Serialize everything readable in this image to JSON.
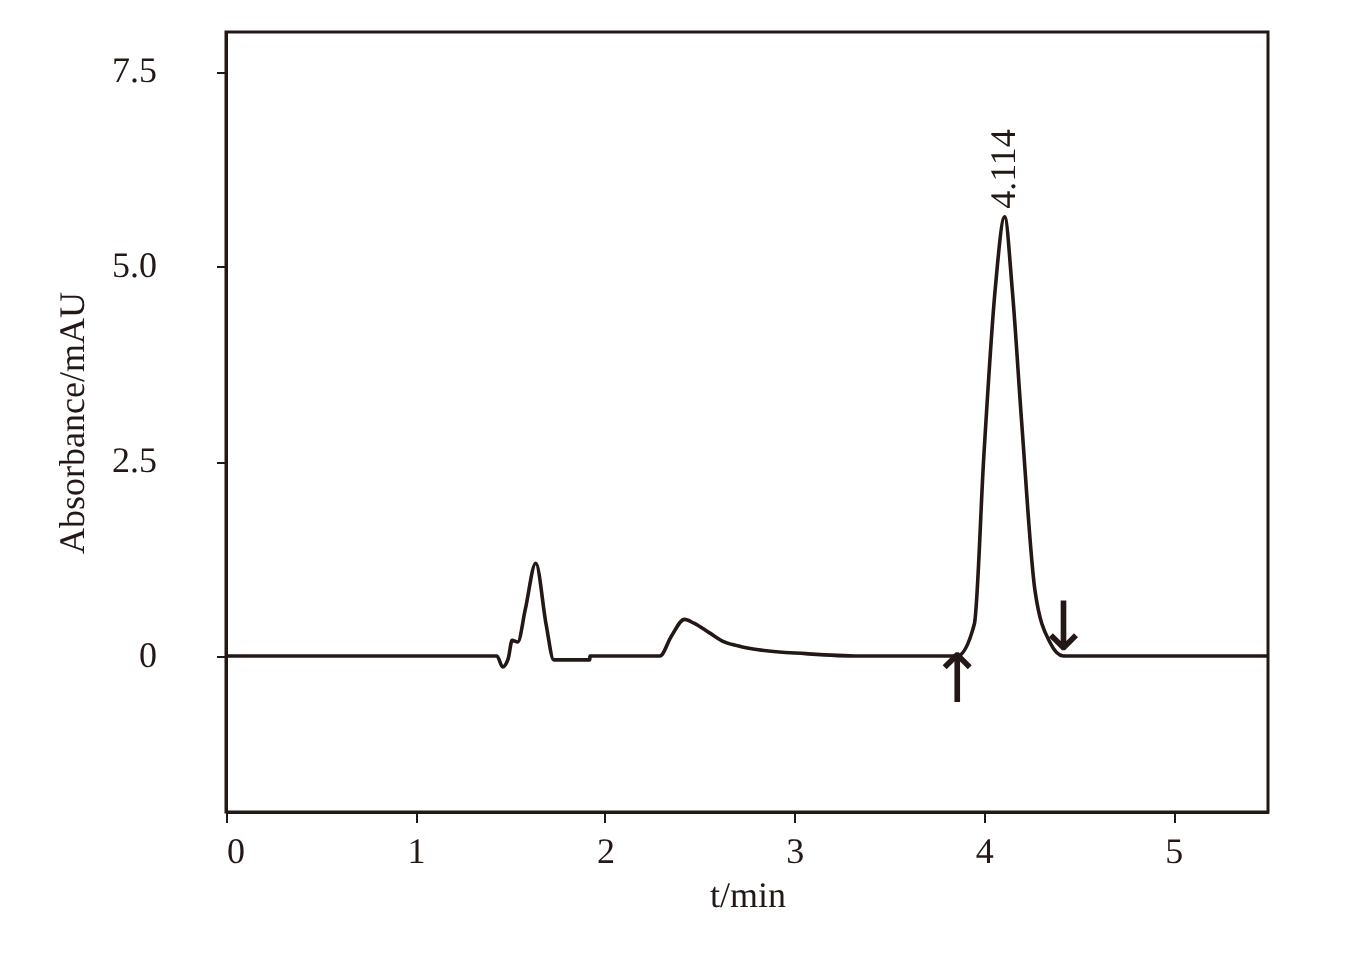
{
  "chart_data": {
    "type": "line",
    "xlabel": "t/min",
    "ylabel": "Absorbance/mAU",
    "xlim": [
      0,
      5.5
    ],
    "ylim": [
      -2,
      8
    ],
    "xticks": [
      0,
      1,
      2,
      3,
      4,
      5
    ],
    "yticks": [
      0,
      2.5,
      {
        "value": 5,
        "label": "5.0"
      },
      7.5
    ],
    "grid": false,
    "marker": "none",
    "line_style": "solid",
    "series": [
      {
        "color": "#231815",
        "x": [
          0,
          1.43,
          1.46,
          1.49,
          1.51,
          1.54,
          1.58,
          1.635,
          1.69,
          1.73,
          1.92,
          1.921,
          2.29,
          2.35,
          2.42,
          2.47,
          2.55,
          2.63,
          2.72,
          2.81,
          3.06,
          3.34,
          3.86,
          3.95,
          4.0,
          4.06,
          4.11,
          4.15,
          4.2,
          4.27,
          4.35,
          4.42,
          5.5
        ],
        "values": [
          0,
          0,
          -0.14,
          -0.03,
          0.2,
          0.18,
          0.6,
          1.19,
          0.4,
          -0.05,
          -0.05,
          0,
          0,
          0.25,
          0.47,
          0.42,
          0.3,
          0.18,
          0.12,
          0.08,
          0.03,
          0,
          0,
          0.41,
          2.56,
          4.7,
          5.63,
          4.7,
          2.99,
          0.84,
          0.17,
          0,
          0
        ]
      }
    ],
    "annotations": [
      {
        "text": "4.114",
        "x": 4.114,
        "y": 5.63
      },
      {
        "text": "↑",
        "x": 3.86,
        "y": 0
      },
      {
        "text": "↓",
        "x": 4.42,
        "y": 0
      }
    ]
  }
}
